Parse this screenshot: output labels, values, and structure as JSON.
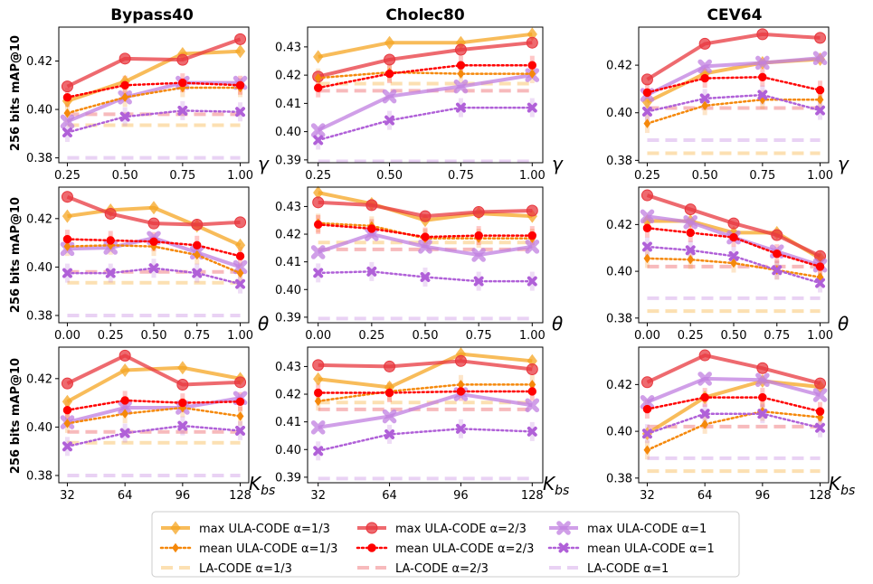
{
  "colors": {
    "a13": "#f5a623",
    "a13_mean": "#f5880a",
    "a23": "#e8383f",
    "a23_mean": "#ff0000",
    "a1": "#c07fe0",
    "a1_mean": "#b060d8"
  },
  "column_titles": [
    "Bypass40",
    "Cholec80",
    "CEV64"
  ],
  "row_ylabels": [
    "256 bits mAP@10",
    "256 bits mAP@10",
    "256 bits mAP@10"
  ],
  "row_params": [
    "γ",
    "θ",
    "K_bs"
  ],
  "legend": {
    "entries": [
      {
        "label": "max ULA-CODE α=1/3",
        "series": "a13_max"
      },
      {
        "label": "mean ULA-CODE α=1/3",
        "series": "a13_mean"
      },
      {
        "label": "LA-CODE  α=1/3",
        "series": "a13_la"
      },
      {
        "label": "max ULA-CODE α=2/3",
        "series": "a23_max"
      },
      {
        "label": "mean ULA-CODE α=2/3",
        "series": "a23_mean"
      },
      {
        "label": "LA-CODE  α=2/3",
        "series": "a23_la"
      },
      {
        "label": "max ULA-CODE α=1",
        "series": "a1_max"
      },
      {
        "label": "mean ULA-CODE α=1",
        "series": "a1_mean"
      },
      {
        "label": "LA-CODE  α=1",
        "series": "a1_la"
      }
    ]
  },
  "chart_data": [
    {
      "type": "line",
      "dataset": "Bypass40",
      "param": "γ",
      "xticks": [
        "0.25",
        "0.50",
        "0.75",
        "1.00"
      ],
      "ylim": [
        0.378,
        0.434
      ],
      "yticks": [
        "0.38",
        "0.40",
        "0.42"
      ],
      "series": {
        "a13_max": [
          0.4035,
          0.4115,
          0.423,
          0.424
        ],
        "a23_max": [
          0.4095,
          0.421,
          0.4205,
          0.429
        ],
        "a1_max": [
          0.395,
          0.405,
          0.411,
          0.411
        ],
        "a13_mean": [
          0.3985,
          0.405,
          0.409,
          0.409
        ],
        "a23_mean": [
          0.405,
          0.41,
          0.411,
          0.41
        ],
        "a1_mean": [
          0.3905,
          0.397,
          0.3995,
          0.399
        ],
        "a13_la": 0.3935,
        "a23_la": 0.398,
        "a1_la": 0.38
      }
    },
    {
      "type": "line",
      "dataset": "Cholec80",
      "param": "γ",
      "xticks": [
        "0.25",
        "0.50",
        "0.75",
        "1.00"
      ],
      "ylim": [
        0.389,
        0.437
      ],
      "yticks": [
        "0.39",
        "0.40",
        "0.41",
        "0.42",
        "0.43"
      ],
      "series": {
        "a13_max": [
          0.4265,
          0.4315,
          0.4315,
          0.4345
        ],
        "a23_max": [
          0.4195,
          0.4255,
          0.429,
          0.4315
        ],
        "a1_max": [
          0.4005,
          0.4125,
          0.416,
          0.42
        ],
        "a13_mean": [
          0.419,
          0.421,
          0.4205,
          0.4205
        ],
        "a23_mean": [
          0.4155,
          0.4205,
          0.4235,
          0.4235
        ],
        "a1_mean": [
          0.397,
          0.404,
          0.4085,
          0.4085
        ],
        "a13_la": 0.417,
        "a23_la": 0.4145,
        "a1_la": 0.3895
      }
    },
    {
      "type": "line",
      "dataset": "CEV64",
      "param": "γ",
      "xticks": [
        "0.25",
        "0.50",
        "0.75",
        "1.00"
      ],
      "ylim": [
        0.379,
        0.436
      ],
      "yticks": [
        "0.38",
        "0.40",
        "0.42"
      ],
      "series": {
        "a13_max": [
          0.4045,
          0.4165,
          0.421,
          0.4225
        ],
        "a23_max": [
          0.414,
          0.429,
          0.433,
          0.4315
        ],
        "a1_max": [
          0.4075,
          0.4195,
          0.421,
          0.423
        ],
        "a13_mean": [
          0.3955,
          0.403,
          0.4055,
          0.4055
        ],
        "a23_mean": [
          0.4085,
          0.4145,
          0.415,
          0.4095
        ],
        "a1_mean": [
          0.4005,
          0.406,
          0.4075,
          0.401
        ],
        "a13_la": 0.383,
        "a23_la": 0.402,
        "a1_la": 0.3885
      }
    },
    {
      "type": "line",
      "dataset": "Bypass40",
      "param": "θ",
      "xticks": [
        "0.00",
        "0.25",
        "0.50",
        "0.75",
        "1.00"
      ],
      "ylim": [
        0.377,
        0.433
      ],
      "yticks": [
        "0.38",
        "0.40",
        "0.42"
      ],
      "series": {
        "a13_max": [
          0.421,
          0.4235,
          0.4245,
          0.417,
          0.409
        ],
        "a23_max": [
          0.429,
          0.422,
          0.418,
          0.4175,
          0.4185
        ],
        "a1_max": [
          0.4075,
          0.408,
          0.412,
          0.406,
          0.4
        ],
        "a13_mean": [
          0.4085,
          0.409,
          0.4085,
          0.405,
          0.3975
        ],
        "a23_mean": [
          0.4115,
          0.411,
          0.4105,
          0.409,
          0.4045
        ],
        "a1_mean": [
          0.3975,
          0.3975,
          0.3995,
          0.3975,
          0.393
        ],
        "a13_la": 0.3935,
        "a23_la": 0.398,
        "a1_la": 0.38
      }
    },
    {
      "type": "line",
      "dataset": "Cholec80",
      "param": "θ",
      "xticks": [
        "0.00",
        "0.25",
        "0.50",
        "0.75",
        "1.00"
      ],
      "ylim": [
        0.388,
        0.437
      ],
      "yticks": [
        "0.39",
        "0.40",
        "0.41",
        "0.42",
        "0.43"
      ],
      "series": {
        "a13_max": [
          0.435,
          0.431,
          0.425,
          0.4275,
          0.4265
        ],
        "a23_max": [
          0.4315,
          0.4305,
          0.4265,
          0.428,
          0.4285
        ],
        "a1_max": [
          0.4135,
          0.42,
          0.4155,
          0.4125,
          0.4155
        ],
        "a13_mean": [
          0.424,
          0.423,
          0.4185,
          0.4185,
          0.4185
        ],
        "a23_mean": [
          0.4235,
          0.422,
          0.419,
          0.4195,
          0.4195
        ],
        "a1_mean": [
          0.406,
          0.4065,
          0.4045,
          0.403,
          0.403
        ],
        "a13_la": 0.417,
        "a23_la": 0.4145,
        "a1_la": 0.3895
      }
    },
    {
      "type": "line",
      "dataset": "CEV64",
      "param": "θ",
      "xticks": [
        "0.00",
        "0.25",
        "0.50",
        "0.75",
        "1.00"
      ],
      "ylim": [
        0.378,
        0.436
      ],
      "yticks": [
        "0.38",
        "0.40",
        "0.42"
      ],
      "series": {
        "a13_max": [
          0.4215,
          0.4215,
          0.4165,
          0.4165,
          0.4055
        ],
        "a23_max": [
          0.4325,
          0.4265,
          0.4205,
          0.4155,
          0.4065
        ],
        "a1_max": [
          0.4235,
          0.421,
          0.4145,
          0.4085,
          0.4025
        ],
        "a13_mean": [
          0.4055,
          0.405,
          0.4035,
          0.4005,
          0.3975
        ],
        "a23_mean": [
          0.4185,
          0.4165,
          0.4145,
          0.4075,
          0.402
        ],
        "a1_mean": [
          0.4105,
          0.409,
          0.4065,
          0.4005,
          0.395
        ],
        "a13_la": 0.383,
        "a23_la": 0.402,
        "a1_la": 0.3885
      }
    },
    {
      "type": "line",
      "dataset": "Bypass40",
      "param": "K_bs",
      "xticks": [
        "32",
        "64",
        "96",
        "128"
      ],
      "ylim": [
        0.377,
        0.433
      ],
      "yticks": [
        "0.38",
        "0.40",
        "0.42"
      ],
      "series": {
        "a13_max": [
          0.4105,
          0.4235,
          0.4245,
          0.42
        ],
        "a23_max": [
          0.418,
          0.4295,
          0.4175,
          0.4185
        ],
        "a1_max": [
          0.402,
          0.408,
          0.408,
          0.412
        ],
        "a13_mean": [
          0.4015,
          0.4055,
          0.408,
          0.4045
        ],
        "a23_mean": [
          0.407,
          0.411,
          0.41,
          0.4105
        ],
        "a1_mean": [
          0.392,
          0.3975,
          0.4005,
          0.3985
        ],
        "a13_la": 0.3935,
        "a23_la": 0.398,
        "a1_la": 0.38
      }
    },
    {
      "type": "line",
      "dataset": "Cholec80",
      "param": "K_bs",
      "xticks": [
        "32",
        "64",
        "96",
        "128"
      ],
      "ylim": [
        0.388,
        0.437
      ],
      "yticks": [
        "0.39",
        "0.40",
        "0.41",
        "0.42",
        "0.43"
      ],
      "series": {
        "a13_max": [
          0.4255,
          0.4225,
          0.4345,
          0.432
        ],
        "a23_max": [
          0.4305,
          0.43,
          0.432,
          0.429
        ],
        "a1_max": [
          0.408,
          0.412,
          0.42,
          0.416
        ],
        "a13_mean": [
          0.4175,
          0.421,
          0.4235,
          0.4235
        ],
        "a23_mean": [
          0.4205,
          0.4205,
          0.421,
          0.421
        ],
        "a1_mean": [
          0.3995,
          0.4055,
          0.4075,
          0.4065
        ],
        "a13_la": 0.417,
        "a23_la": 0.4145,
        "a1_la": 0.3895
      }
    },
    {
      "type": "line",
      "dataset": "CEV64",
      "param": "K_bs",
      "xticks": [
        "32",
        "64",
        "96",
        "128"
      ],
      "ylim": [
        0.378,
        0.436
      ],
      "yticks": [
        "0.38",
        "0.40",
        "0.42"
      ],
      "series": {
        "a13_max": [
          0.399,
          0.4145,
          0.4215,
          0.419
        ],
        "a23_max": [
          0.421,
          0.4325,
          0.427,
          0.4205
        ],
        "a1_max": [
          0.4125,
          0.4225,
          0.422,
          0.4155
        ],
        "a13_mean": [
          0.392,
          0.403,
          0.4085,
          0.406
        ],
        "a23_mean": [
          0.4095,
          0.4145,
          0.4145,
          0.4085
        ],
        "a1_mean": [
          0.399,
          0.4075,
          0.4075,
          0.4015
        ],
        "a13_la": 0.383,
        "a23_la": 0.402,
        "a1_la": 0.3885
      }
    }
  ]
}
